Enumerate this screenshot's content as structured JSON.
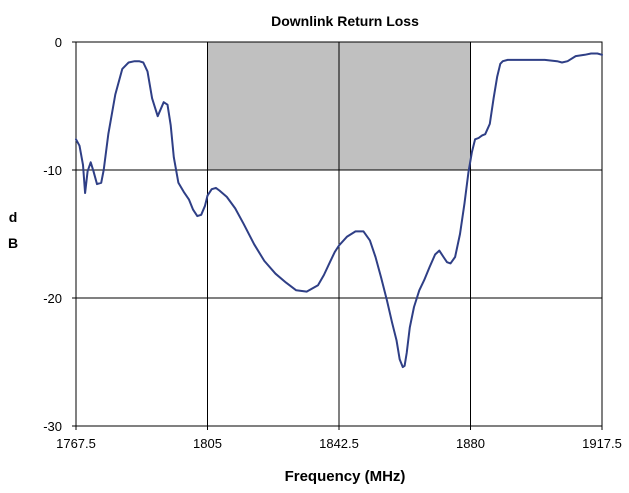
{
  "chart_data": {
    "type": "line",
    "title": "Downlink Return Loss",
    "xlabel": "Frequency (MHz)",
    "ylabel_lines": [
      "d",
      "B"
    ],
    "xlim": [
      1767.5,
      1917.5
    ],
    "ylim": [
      -30,
      0
    ],
    "x_ticks": [
      1767.5,
      1805,
      1842.5,
      1880,
      1917.5
    ],
    "x_tick_labels": [
      "1767.5",
      "1805",
      "1842.5",
      "1880",
      "1917.5"
    ],
    "y_ticks": [
      0,
      -10,
      -20,
      -30
    ],
    "y_tick_labels": [
      "0",
      "-10",
      "-20",
      "-30"
    ],
    "grid": true,
    "shaded_region": {
      "x": [
        1805,
        1880
      ],
      "y": [
        -10,
        0
      ],
      "color": "#c0c0c0"
    },
    "series": [
      {
        "color": "#2f3f86",
        "x": [
          1767.5,
          1768.5,
          1769.5,
          1770.1,
          1770.8,
          1771.7,
          1772.5,
          1773.5,
          1774.7,
          1775.4,
          1776.7,
          1778.7,
          1780.7,
          1782.5,
          1784.2,
          1785.5,
          1786.7,
          1787.9,
          1789.2,
          1790.8,
          1792.5,
          1793.6,
          1794.5,
          1795.4,
          1796.7,
          1798.2,
          1799.7,
          1800.9,
          1802.1,
          1803.2,
          1804.3,
          1805.0,
          1806.2,
          1807.4,
          1808.4,
          1810.5,
          1812.9,
          1815.3,
          1818.3,
          1821.2,
          1824.4,
          1827.4,
          1830.3,
          1833.3,
          1836.5,
          1838.2,
          1839.9,
          1841.3,
          1842.5,
          1844.8,
          1847.2,
          1849.5,
          1851.3,
          1852.9,
          1854.5,
          1856.2,
          1857.6,
          1858.9,
          1859.8,
          1860.7,
          1861.2,
          1861.8,
          1862.7,
          1863.9,
          1865.4,
          1866.8,
          1868.3,
          1869.9,
          1871.1,
          1872.3,
          1873.3,
          1874.3,
          1875.6,
          1877.0,
          1878.3,
          1879.4,
          1880.4,
          1881.3,
          1882.3,
          1883.3,
          1884.2,
          1885.5,
          1886.6,
          1887.6,
          1888.5,
          1889.2,
          1890.6,
          1892.0,
          1894.4,
          1897.7,
          1901.2,
          1904.7,
          1906.1,
          1907.7,
          1910.0,
          1912.6,
          1914.4,
          1916.2,
          1917.5
        ],
        "values": [
          -7.6,
          -8.1,
          -9.6,
          -11.8,
          -10.1,
          -9.4,
          -10.1,
          -11.1,
          -11.0,
          -10.0,
          -7.2,
          -4.1,
          -2.1,
          -1.6,
          -1.5,
          -1.5,
          -1.6,
          -2.3,
          -4.4,
          -5.8,
          -4.7,
          -4.9,
          -6.5,
          -9.0,
          -11.0,
          -11.7,
          -12.3,
          -13.1,
          -13.6,
          -13.5,
          -12.8,
          -12.0,
          -11.5,
          -11.4,
          -11.6,
          -12.1,
          -13.0,
          -14.2,
          -15.8,
          -17.1,
          -18.1,
          -18.8,
          -19.4,
          -19.5,
          -19.0,
          -18.2,
          -17.2,
          -16.4,
          -15.9,
          -15.2,
          -14.8,
          -14.8,
          -15.5,
          -16.8,
          -18.4,
          -20.2,
          -21.9,
          -23.3,
          -24.8,
          -25.4,
          -25.3,
          -24.3,
          -22.3,
          -20.7,
          -19.4,
          -18.6,
          -17.6,
          -16.6,
          -16.3,
          -16.8,
          -17.2,
          -17.3,
          -16.8,
          -15.0,
          -12.6,
          -10.2,
          -8.6,
          -7.6,
          -7.5,
          -7.3,
          -7.2,
          -6.4,
          -4.4,
          -2.7,
          -1.7,
          -1.5,
          -1.4,
          -1.4,
          -1.4,
          -1.4,
          -1.4,
          -1.5,
          -1.6,
          -1.5,
          -1.1,
          -1.0,
          -0.9,
          -0.9,
          -1.0
        ]
      }
    ]
  }
}
